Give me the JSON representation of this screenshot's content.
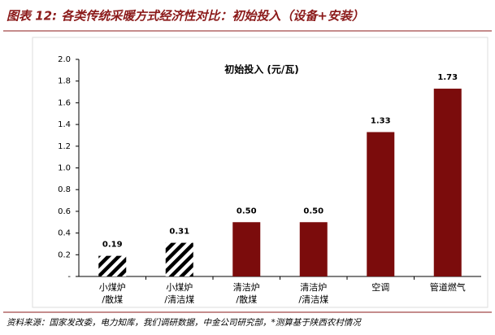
{
  "chart_data": {
    "type": "bar",
    "title": "图表 12: 各类传统采暖方式经济性对比：初始投入（设备+安装）",
    "subtitle": "初始投入 (元/瓦)",
    "categories": [
      [
        "小煤炉",
        "/散煤"
      ],
      [
        "小煤炉",
        "/清洁煤"
      ],
      [
        "清洁炉",
        "/散煤"
      ],
      [
        "清洁炉",
        "/清洁煤"
      ],
      [
        "空调"
      ],
      [
        "管道燃气"
      ]
    ],
    "values": [
      0.19,
      0.31,
      0.5,
      0.5,
      1.33,
      1.73
    ],
    "value_labels": [
      "0.19",
      "0.31",
      "0.50",
      "0.50",
      "1.33",
      "1.73"
    ],
    "bar_styles": [
      "hatch",
      "hatch",
      "solid",
      "solid",
      "solid",
      "solid"
    ],
    "color": "#7b0c0c",
    "ylim": [
      0,
      2
    ],
    "yticks": [
      {
        "value": 0,
        "label": "-"
      },
      0.2,
      0.4,
      0.6,
      0.8,
      {
        "value": 1,
        "label": "1.0"
      },
      1.2,
      1.4,
      1.6,
      1.8,
      {
        "value": 2,
        "label": "2.0"
      }
    ],
    "source": "资料来源：国家发改委，电力知库，我们调研数据，中金公司研究部，*测算基于陕西农村情况"
  }
}
